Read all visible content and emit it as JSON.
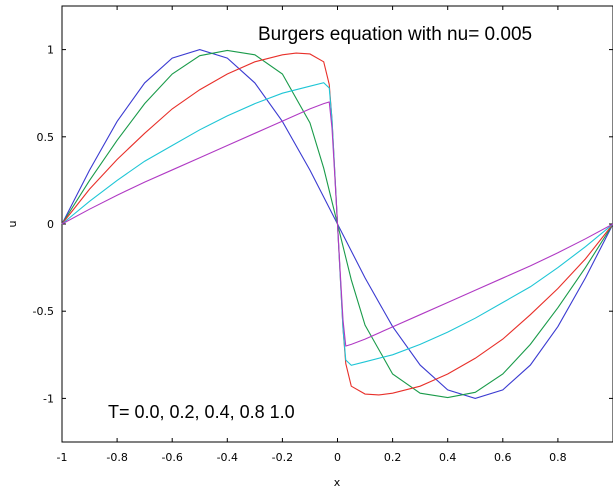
{
  "chart_data": {
    "type": "line",
    "title": "",
    "xlabel": "x",
    "ylabel": "u",
    "xlim": [
      -1,
      1
    ],
    "ylim": [
      -1.25,
      1.25
    ],
    "xticks": [
      -1,
      -0.8,
      -0.6,
      -0.4,
      -0.2,
      0,
      0.2,
      0.4,
      0.6,
      0.8
    ],
    "xtick_labels": [
      "-1",
      "-0.8",
      "-0.6",
      "-0.4",
      "-0.2",
      "0",
      "0.2",
      "0.4",
      "0.6",
      "0.8"
    ],
    "yticks": [
      -1,
      -0.5,
      0,
      0.5,
      1
    ],
    "ytick_labels": [
      "-1",
      "-0.5",
      "0",
      "0.5",
      "1"
    ],
    "grid": false,
    "legend": "none",
    "annotations": [
      {
        "text": "Burgers equation with nu= 0.005"
      },
      {
        "text": "T= 0.0, 0.2, 0.4, 0.8 1.0"
      }
    ],
    "series": [
      {
        "color": "#3b3bd1",
        "x": [
          -1,
          -0.9,
          -0.8,
          -0.7,
          -0.6,
          -0.5,
          -0.4,
          -0.3,
          -0.2,
          -0.1,
          0,
          0.1,
          0.2,
          0.3,
          0.4,
          0.5,
          0.6,
          0.7,
          0.8,
          0.9,
          1
        ],
        "y": [
          0,
          0.309,
          0.588,
          0.809,
          0.951,
          1,
          0.951,
          0.809,
          0.588,
          0.309,
          0,
          -0.309,
          -0.588,
          -0.809,
          -0.951,
          -1,
          -0.951,
          -0.809,
          -0.588,
          -0.309,
          0
        ]
      },
      {
        "color": "#1a9b4a",
        "x": [
          -1,
          -0.9,
          -0.8,
          -0.7,
          -0.6,
          -0.5,
          -0.4,
          -0.3,
          -0.2,
          -0.1,
          -0.05,
          0,
          0.05,
          0.1,
          0.2,
          0.3,
          0.4,
          0.5,
          0.6,
          0.7,
          0.8,
          0.9,
          1
        ],
        "y": [
          0,
          0.25,
          0.48,
          0.69,
          0.86,
          0.965,
          0.995,
          0.97,
          0.86,
          0.58,
          0.32,
          0,
          -0.32,
          -0.58,
          -0.86,
          -0.97,
          -0.995,
          -0.965,
          -0.86,
          -0.69,
          -0.48,
          -0.25,
          0
        ]
      },
      {
        "color": "#e8302a",
        "x": [
          -1,
          -0.9,
          -0.8,
          -0.7,
          -0.6,
          -0.5,
          -0.4,
          -0.3,
          -0.2,
          -0.15,
          -0.1,
          -0.05,
          -0.03,
          -0.02,
          -0.01,
          0,
          0.01,
          0.02,
          0.03,
          0.05,
          0.1,
          0.15,
          0.2,
          0.3,
          0.4,
          0.5,
          0.6,
          0.7,
          0.8,
          0.9,
          1
        ],
        "y": [
          0,
          0.2,
          0.37,
          0.52,
          0.66,
          0.77,
          0.86,
          0.93,
          0.97,
          0.98,
          0.975,
          0.93,
          0.8,
          0.6,
          0.3,
          0,
          -0.3,
          -0.6,
          -0.8,
          -0.93,
          -0.975,
          -0.98,
          -0.97,
          -0.93,
          -0.86,
          -0.77,
          -0.66,
          -0.52,
          -0.37,
          -0.2,
          0
        ]
      },
      {
        "color": "#1fc6d6",
        "x": [
          -1,
          -0.9,
          -0.8,
          -0.7,
          -0.6,
          -0.5,
          -0.4,
          -0.3,
          -0.2,
          -0.1,
          -0.05,
          -0.03,
          -0.02,
          -0.01,
          0,
          0.01,
          0.02,
          0.03,
          0.05,
          0.1,
          0.2,
          0.3,
          0.4,
          0.5,
          0.6,
          0.7,
          0.8,
          0.9,
          1
        ],
        "y": [
          0,
          0.13,
          0.25,
          0.36,
          0.45,
          0.54,
          0.62,
          0.69,
          0.75,
          0.79,
          0.81,
          0.78,
          0.6,
          0.3,
          0,
          -0.3,
          -0.6,
          -0.78,
          -0.81,
          -0.79,
          -0.75,
          -0.69,
          -0.62,
          -0.54,
          -0.45,
          -0.36,
          -0.25,
          -0.13,
          0
        ]
      },
      {
        "color": "#b03ac4",
        "x": [
          -1,
          -0.9,
          -0.8,
          -0.7,
          -0.6,
          -0.5,
          -0.4,
          -0.3,
          -0.2,
          -0.1,
          -0.05,
          -0.03,
          -0.02,
          -0.01,
          0,
          0.01,
          0.02,
          0.03,
          0.05,
          0.1,
          0.2,
          0.3,
          0.4,
          0.5,
          0.6,
          0.7,
          0.8,
          0.9,
          1
        ],
        "y": [
          0,
          0.085,
          0.165,
          0.24,
          0.31,
          0.38,
          0.45,
          0.52,
          0.59,
          0.66,
          0.69,
          0.7,
          0.55,
          0.28,
          0,
          -0.28,
          -0.55,
          -0.7,
          -0.69,
          -0.66,
          -0.59,
          -0.52,
          -0.45,
          -0.38,
          -0.31,
          -0.24,
          -0.165,
          -0.085,
          0
        ]
      }
    ]
  }
}
